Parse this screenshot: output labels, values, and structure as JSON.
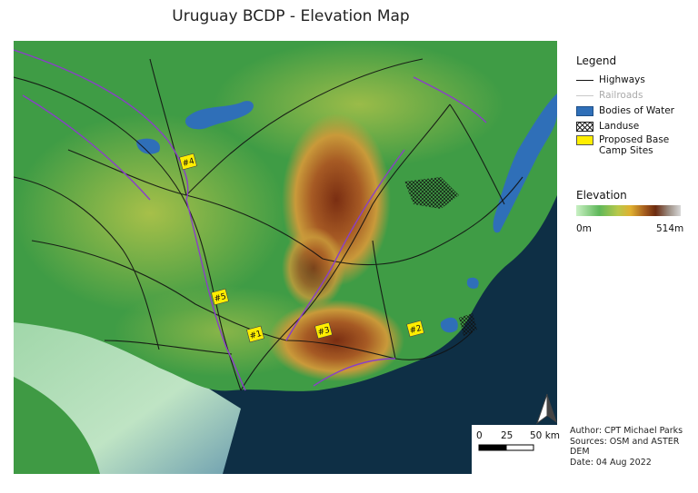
{
  "title": "Uruguay BCDP - Elevation Map",
  "legend": {
    "heading": "Legend",
    "items": [
      {
        "label": "Highways",
        "symbol": "line",
        "color": "#111111"
      },
      {
        "label": "Railroads",
        "symbol": "rail",
        "color": "#c8c8c8"
      },
      {
        "label": "Bodies of Water",
        "symbol": "water",
        "color": "#2f6fb8"
      },
      {
        "label": "Landuse",
        "symbol": "landuse"
      },
      {
        "label": "Proposed Base Camp Sites",
        "symbol": "site",
        "color": "#ffee00"
      }
    ]
  },
  "elevation": {
    "heading": "Elevation",
    "min": "0m",
    "max": "514m"
  },
  "sites": [
    {
      "label": "#1"
    },
    {
      "label": "#2"
    },
    {
      "label": "#3"
    },
    {
      "label": "#4"
    },
    {
      "label": "#5"
    }
  ],
  "scalebar": {
    "labels": [
      "0",
      "25",
      "50 km"
    ]
  },
  "credits": {
    "author": "Author: CPT Michael Parks",
    "sources": "Sources: OSM and ASTER DEM",
    "date": "Date: 04 Aug 2022"
  }
}
